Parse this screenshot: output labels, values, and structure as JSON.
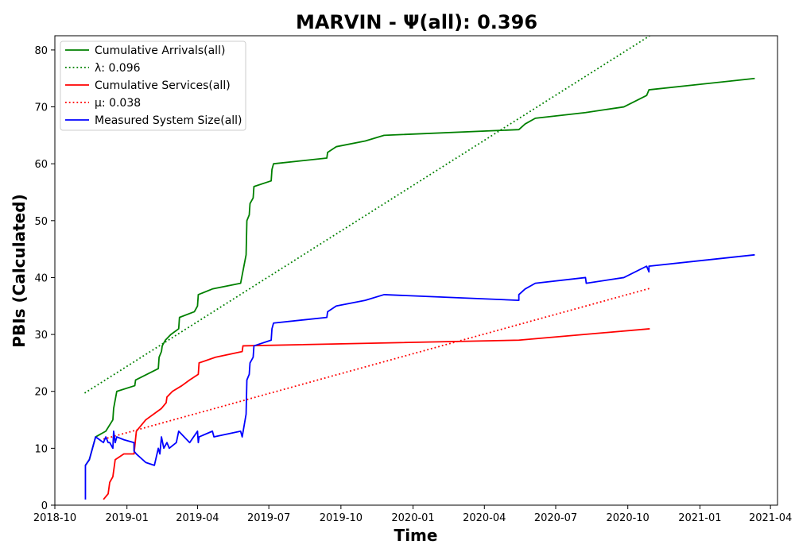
{
  "chart_data": {
    "type": "line",
    "title": "MARVIN -  Ψ(all): 0.396",
    "xlabel": "Time",
    "ylabel": "PBIs (Calculated)",
    "xlim": [
      "2018-10-01",
      "2021-04-10"
    ],
    "ylim": [
      0,
      82.5
    ],
    "x_ticks": [
      "2018-10",
      "2019-01",
      "2019-04",
      "2019-07",
      "2019-10",
      "2020-01",
      "2020-04",
      "2020-07",
      "2020-10",
      "2021-01",
      "2021-04"
    ],
    "y_ticks": [
      0,
      10,
      20,
      30,
      40,
      50,
      60,
      70,
      80
    ],
    "grid": false,
    "legend_position": "top-left",
    "series": [
      {
        "name": "Cumulative Arrivals(all)",
        "color": "#008000",
        "style": "solid",
        "points": [
          [
            "2018-11-09",
            7
          ],
          [
            "2018-11-14",
            8
          ],
          [
            "2018-11-22",
            12
          ],
          [
            "2018-12-05",
            13
          ],
          [
            "2018-12-14",
            15
          ],
          [
            "2018-12-15",
            17
          ],
          [
            "2018-12-19",
            20
          ],
          [
            "2019-01-11",
            21
          ],
          [
            "2019-01-12",
            22
          ],
          [
            "2019-02-10",
            24
          ],
          [
            "2019-02-11",
            26
          ],
          [
            "2019-02-14",
            27
          ],
          [
            "2019-02-15",
            28
          ],
          [
            "2019-02-19",
            29
          ],
          [
            "2019-02-26",
            30
          ],
          [
            "2019-03-08",
            31
          ],
          [
            "2019-03-09",
            33
          ],
          [
            "2019-03-28",
            34
          ],
          [
            "2019-04-01",
            35
          ],
          [
            "2019-04-02",
            37
          ],
          [
            "2019-04-20",
            38
          ],
          [
            "2019-05-26",
            39
          ],
          [
            "2019-06-02",
            44
          ],
          [
            "2019-06-03",
            50
          ],
          [
            "2019-06-06",
            51
          ],
          [
            "2019-06-07",
            53
          ],
          [
            "2019-06-11",
            54
          ],
          [
            "2019-06-12",
            56
          ],
          [
            "2019-07-04",
            57
          ],
          [
            "2019-07-05",
            59
          ],
          [
            "2019-07-07",
            60
          ],
          [
            "2019-09-13",
            61
          ],
          [
            "2019-09-14",
            62
          ],
          [
            "2019-09-25",
            63
          ],
          [
            "2019-11-01",
            64
          ],
          [
            "2019-11-25",
            65
          ],
          [
            "2020-05-15",
            66
          ],
          [
            "2020-05-23",
            67
          ],
          [
            "2020-06-05",
            68
          ],
          [
            "2020-08-08",
            69
          ],
          [
            "2020-09-26",
            70
          ],
          [
            "2020-10-25",
            72
          ],
          [
            "2020-10-28",
            73
          ],
          [
            "2021-03-12",
            75
          ]
        ]
      },
      {
        "name": "λ: 0.096",
        "color": "#008000",
        "style": "dotted",
        "points": [
          [
            "2018-11-08",
            19.7
          ],
          [
            "2020-10-29",
            82.5
          ]
        ]
      },
      {
        "name": "Cumulative Services(all)",
        "color": "#ff0000",
        "style": "solid",
        "points": [
          [
            "2018-12-02",
            1
          ],
          [
            "2018-12-08",
            2
          ],
          [
            "2018-12-10",
            4
          ],
          [
            "2018-12-14",
            5
          ],
          [
            "2018-12-17",
            8
          ],
          [
            "2018-12-28",
            9
          ],
          [
            "2019-01-10",
            9
          ],
          [
            "2019-01-13",
            13
          ],
          [
            "2019-01-19",
            14
          ],
          [
            "2019-01-25",
            15
          ],
          [
            "2019-02-14",
            17
          ],
          [
            "2019-02-20",
            18
          ],
          [
            "2019-02-21",
            19
          ],
          [
            "2019-02-28",
            20
          ],
          [
            "2019-03-12",
            21
          ],
          [
            "2019-03-22",
            22
          ],
          [
            "2019-04-02",
            23
          ],
          [
            "2019-04-03",
            25
          ],
          [
            "2019-04-24",
            26
          ],
          [
            "2019-05-28",
            27
          ],
          [
            "2019-05-29",
            28
          ],
          [
            "2020-05-15",
            29
          ],
          [
            "2020-10-29",
            31
          ]
        ]
      },
      {
        "name": "μ: 0.038",
        "color": "#ff0000",
        "style": "dotted",
        "points": [
          [
            "2018-12-02",
            11.6
          ],
          [
            "2020-10-29",
            38.1
          ]
        ]
      },
      {
        "name": "Measured System Size(all)",
        "color": "#0000ff",
        "style": "solid",
        "points": [
          [
            "2018-11-09",
            1
          ],
          [
            "2018-11-09",
            7
          ],
          [
            "2018-11-14",
            8
          ],
          [
            "2018-11-22",
            12
          ],
          [
            "2018-12-02",
            11
          ],
          [
            "2018-12-05",
            12
          ],
          [
            "2018-12-08",
            11
          ],
          [
            "2018-12-10",
            11
          ],
          [
            "2018-12-14",
            10
          ],
          [
            "2018-12-15",
            13
          ],
          [
            "2018-12-17",
            11
          ],
          [
            "2018-12-19",
            12
          ],
          [
            "2018-12-28",
            11.5
          ],
          [
            "2019-01-10",
            11
          ],
          [
            "2019-01-10",
            9.5
          ],
          [
            "2019-01-13",
            9
          ],
          [
            "2019-01-25",
            7.5
          ],
          [
            "2019-02-05",
            7
          ],
          [
            "2019-02-10",
            10
          ],
          [
            "2019-02-12",
            9
          ],
          [
            "2019-02-14",
            12
          ],
          [
            "2019-02-17",
            10
          ],
          [
            "2019-02-21",
            11
          ],
          [
            "2019-02-24",
            10
          ],
          [
            "2019-03-05",
            11
          ],
          [
            "2019-03-08",
            13
          ],
          [
            "2019-03-22",
            11
          ],
          [
            "2019-04-01",
            13
          ],
          [
            "2019-04-02",
            11
          ],
          [
            "2019-04-03",
            12
          ],
          [
            "2019-04-20",
            13
          ],
          [
            "2019-04-22",
            12
          ],
          [
            "2019-05-26",
            13
          ],
          [
            "2019-05-28",
            12
          ],
          [
            "2019-06-02",
            16
          ],
          [
            "2019-06-03",
            22
          ],
          [
            "2019-06-06",
            23
          ],
          [
            "2019-06-07",
            25
          ],
          [
            "2019-06-11",
            26
          ],
          [
            "2019-06-12",
            28
          ],
          [
            "2019-07-04",
            29
          ],
          [
            "2019-07-05",
            31
          ],
          [
            "2019-07-07",
            32
          ],
          [
            "2019-09-13",
            33
          ],
          [
            "2019-09-14",
            34
          ],
          [
            "2019-09-25",
            35
          ],
          [
            "2019-11-01",
            36
          ],
          [
            "2019-11-25",
            37
          ],
          [
            "2020-05-15",
            36
          ],
          [
            "2020-05-15",
            37
          ],
          [
            "2020-05-23",
            38
          ],
          [
            "2020-06-05",
            39
          ],
          [
            "2020-08-08",
            40
          ],
          [
            "2020-08-09",
            39
          ],
          [
            "2020-09-26",
            40
          ],
          [
            "2020-10-25",
            42
          ],
          [
            "2020-10-28",
            41
          ],
          [
            "2020-10-28",
            42
          ],
          [
            "2021-03-12",
            44
          ]
        ]
      }
    ]
  }
}
